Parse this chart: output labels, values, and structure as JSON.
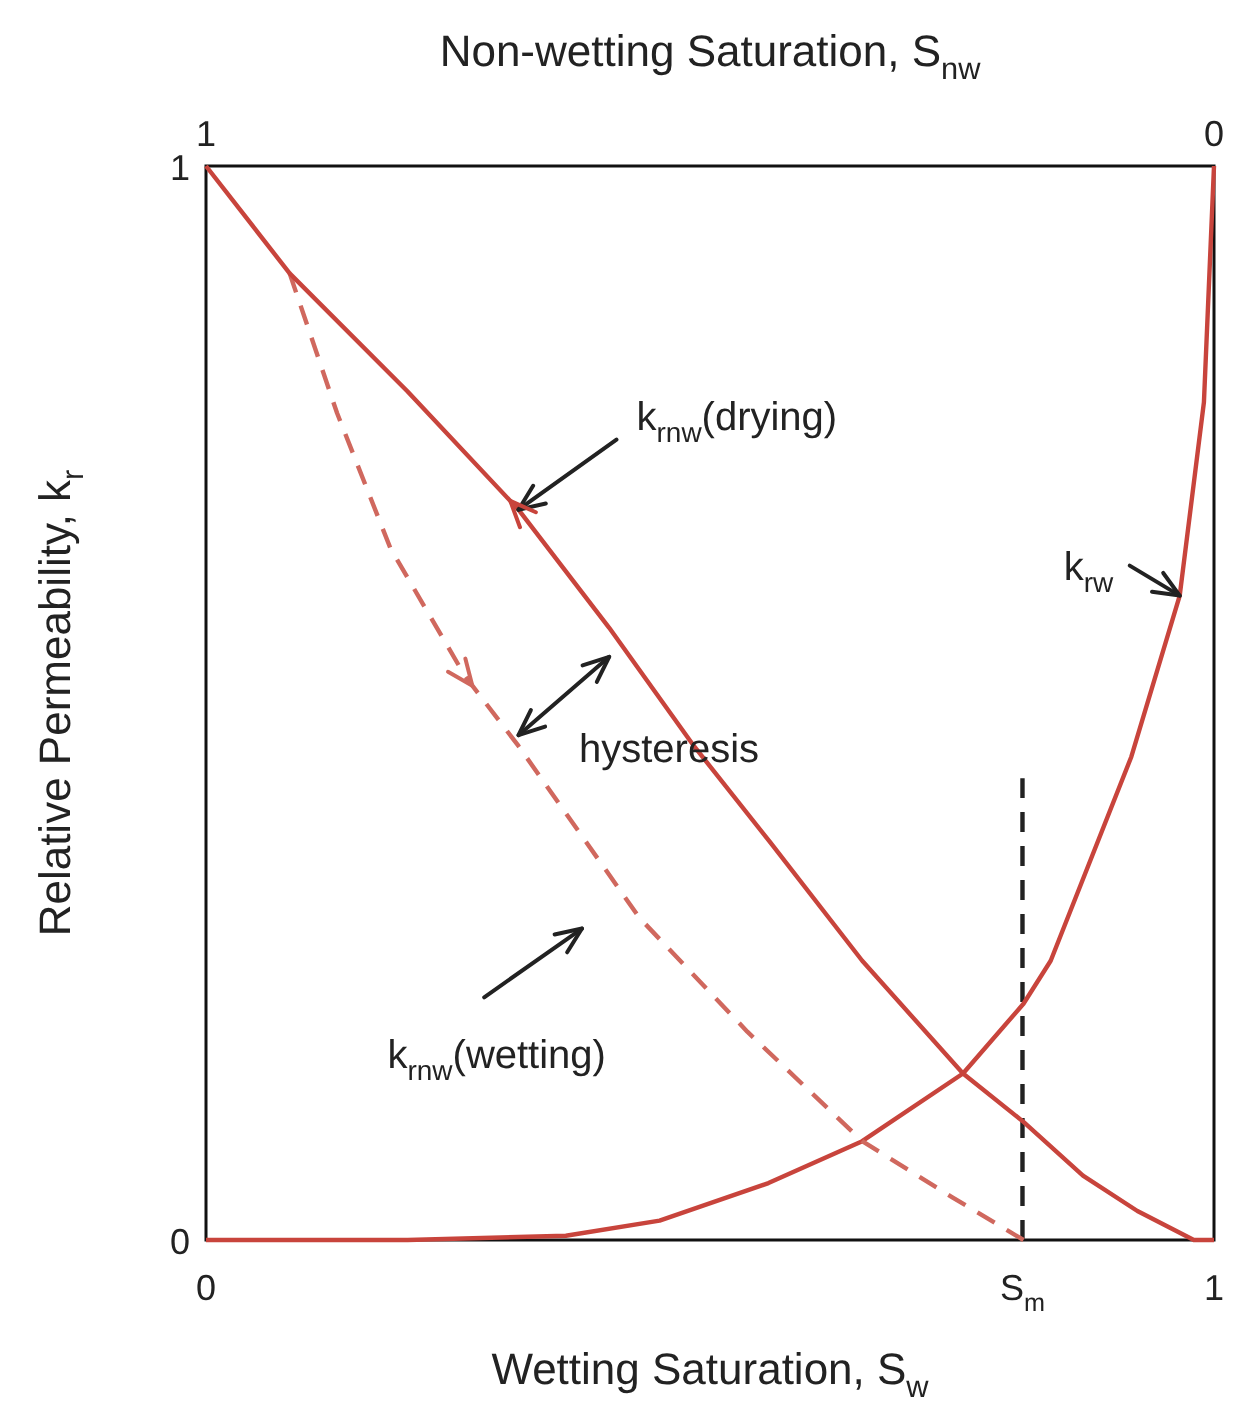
{
  "chart_data": {
    "type": "line",
    "xlabel": "Wetting Saturation, S$_{w}$",
    "x2label": "Non-wetting Saturation, S$_{nw}$",
    "ylabel": "Relative Permeability, k$_{r}$",
    "xlim": [
      0,
      1
    ],
    "xticks": [
      0,
      {
        "value": 0.81,
        "label": "S$_{m}$"
      },
      1
    ],
    "x2lim": [
      1,
      0
    ],
    "x2ticks": [
      1,
      0
    ],
    "ylim": [
      0,
      1
    ],
    "yticks": [
      0,
      1
    ],
    "grid": false,
    "legend": false,
    "marker": "none",
    "series": [
      {
        "color": "#c8443c",
        "line_style": "solid",
        "x": [
          0,
          0.083,
          0.2,
          0.31,
          0.4,
          0.484,
          0.56,
          0.651,
          0.751,
          0.811,
          0.87,
          0.924,
          0.98,
          1
        ],
        "values": [
          1,
          0.9,
          0.79,
          0.68,
          0.57,
          0.46,
          0.37,
          0.26,
          0.155,
          0.11,
          0.06,
          0.027,
          0,
          0
        ]
      },
      {
        "color": "#d0685e",
        "line_style": "dashed",
        "x": [
          0.083,
          0.13,
          0.183,
          0.257,
          0.31,
          0.37,
          0.43,
          0.537,
          0.651,
          0.74,
          0.811
        ],
        "values": [
          0.9,
          0.77,
          0.644,
          0.525,
          0.46,
          0.38,
          0.3,
          0.194,
          0.092,
          0.04,
          0
        ]
      },
      {
        "color": "#c8443c",
        "line_style": "solid",
        "x": [
          0,
          0.2,
          0.357,
          0.45,
          0.558,
          0.651,
          0.751,
          0.811,
          0.838,
          0.918,
          0.966,
          0.99,
          1
        ],
        "values": [
          0,
          0,
          0.004,
          0.018,
          0.053,
          0.092,
          0.155,
          0.22,
          0.26,
          0.45,
          0.6,
          0.78,
          1
        ]
      },
      {
        "color": "#222222",
        "line_style": "dashed",
        "x": [
          0.81,
          0.81
        ],
        "values": [
          0,
          0.43
        ]
      }
    ],
    "annotations": [
      {
        "text": "k$_{rnw}$(drying)",
        "x": 0.31,
        "y": 0.68
      },
      {
        "text": "k$_{rw}$",
        "x": 0.966,
        "y": 0.6
      },
      "hysteresis",
      "k$_{rnw}$(wetting)"
    ]
  }
}
